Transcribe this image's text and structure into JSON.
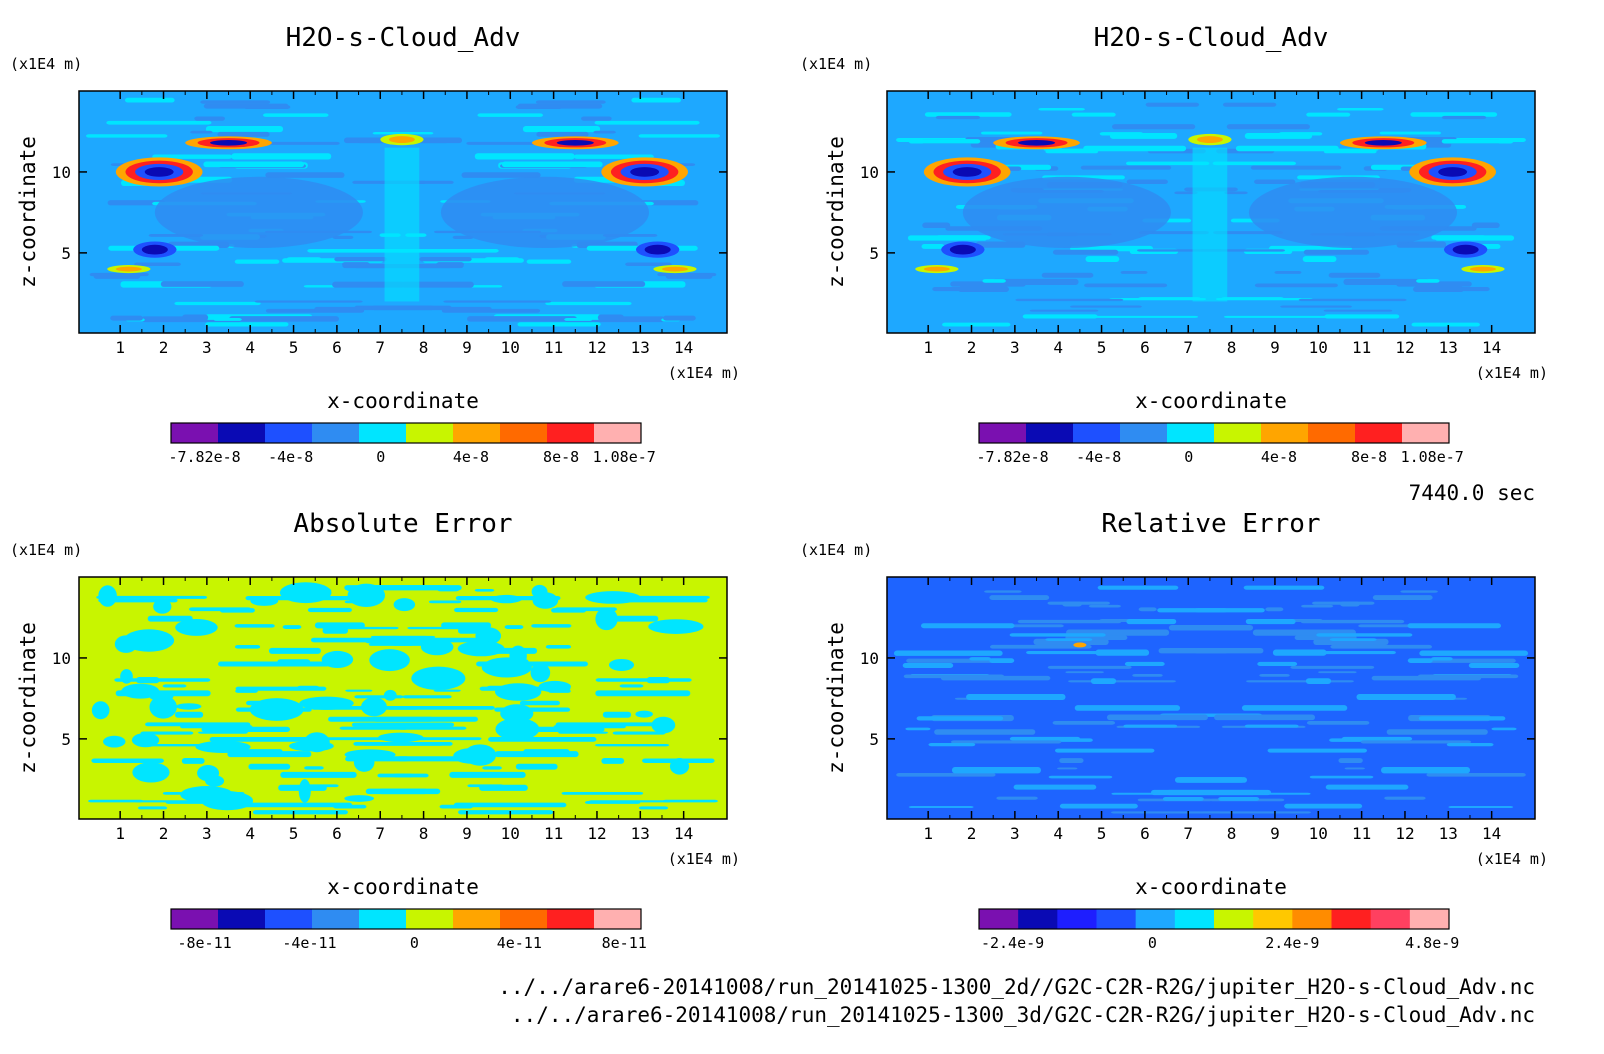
{
  "time_label": "7440.0 sec",
  "footer": {
    "line1": "../../arare6-20141008/run_20141025-1300_2d//G2C-C2R-R2G/jupiter_H2O-s-Cloud_Adv.nc",
    "line2": "../../arare6-20141008/run_20141025-1300_3d/G2C-C2R-R2G/jupiter_H2O-s-Cloud_Adv.nc"
  },
  "colors": {
    "deep_blue": "#0a33d6",
    "blue": "#1e64ff",
    "mid_blue": "#2f8cf2",
    "light_blue": "#1ea8ff",
    "cyan": "#00e5ff",
    "yellow_green": "#c8f500",
    "orange": "#ffa500",
    "red": "#ff2020"
  },
  "chart_data": [
    {
      "type": "heatmap",
      "title": "H2O-s-Cloud_Adv",
      "xlabel": "x-coordinate",
      "ylabel": "z-coordinate",
      "x_unit": "(x1E4 m)",
      "y_unit": "(x1E4 m)",
      "xlim": [
        0.05,
        15.0
      ],
      "ylim": [
        0.05,
        15.0
      ],
      "x_ticks": [
        "1",
        "2",
        "3",
        "4",
        "5",
        "6",
        "7",
        "8",
        "9",
        "10",
        "11",
        "12",
        "13",
        "14"
      ],
      "y_ticks": [
        "5",
        "10"
      ],
      "colorbar": {
        "colors": [
          "#7a10b0",
          "#0a0ab4",
          "#1e50ff",
          "#2f8cf2",
          "#00e5ff",
          "#c8f500",
          "#ffa500",
          "#ff6a00",
          "#ff2020",
          "#ffb0b0"
        ],
        "tick_labels": [
          "-7.82e-8",
          "-4e-8",
          "0",
          "4e-8",
          "8e-8",
          "1.08e-7"
        ],
        "tick_values": [
          -7.82e-08,
          -4e-08,
          0,
          4e-08,
          8e-08,
          1.08e-07
        ]
      },
      "field": {
        "background": "#1ea8ff",
        "features": [
          {
            "x": 1.9,
            "z": 10.0,
            "rx": 1.0,
            "rz": 0.9,
            "colors": [
              "#ffa500",
              "#ff2020",
              "#1e50ff",
              "#0a0ab4"
            ]
          },
          {
            "x": 13.1,
            "z": 10.0,
            "rx": 1.0,
            "rz": 0.9,
            "colors": [
              "#ffa500",
              "#ff2020",
              "#1e50ff",
              "#0a0ab4"
            ]
          },
          {
            "x": 3.5,
            "z": 11.8,
            "rx": 1.0,
            "rz": 0.4,
            "colors": [
              "#ffa500",
              "#ff2020",
              "#0a0ab4"
            ]
          },
          {
            "x": 11.5,
            "z": 11.8,
            "rx": 1.0,
            "rz": 0.4,
            "colors": [
              "#ffa500",
              "#ff2020",
              "#0a0ab4"
            ]
          },
          {
            "x": 7.5,
            "z": 12.0,
            "rx": 0.5,
            "rz": 0.35,
            "colors": [
              "#c8f500",
              "#ffa500"
            ]
          },
          {
            "x": 1.8,
            "z": 5.2,
            "rx": 0.5,
            "rz": 0.5,
            "colors": [
              "#1e50ff",
              "#0a0ab4"
            ]
          },
          {
            "x": 13.4,
            "z": 5.2,
            "rx": 0.5,
            "rz": 0.5,
            "colors": [
              "#1e50ff",
              "#0a0ab4"
            ]
          },
          {
            "x": 1.2,
            "z": 4.0,
            "rx": 0.5,
            "rz": 0.25,
            "colors": [
              "#c8f500",
              "#ffa500"
            ]
          },
          {
            "x": 13.8,
            "z": 4.0,
            "rx": 0.5,
            "rz": 0.25,
            "colors": [
              "#c8f500",
              "#ffa500"
            ]
          }
        ],
        "band_colors": [
          "#00e5ff",
          "#2f8cf2"
        ]
      }
    },
    {
      "type": "heatmap",
      "title": "H2O-s-Cloud_Adv",
      "xlabel": "x-coordinate",
      "ylabel": "z-coordinate",
      "x_unit": "(x1E4 m)",
      "y_unit": "(x1E4 m)",
      "xlim": [
        0.05,
        15.0
      ],
      "ylim": [
        0.05,
        15.0
      ],
      "x_ticks": [
        "1",
        "2",
        "3",
        "4",
        "5",
        "6",
        "7",
        "8",
        "9",
        "10",
        "11",
        "12",
        "13",
        "14"
      ],
      "y_ticks": [
        "5",
        "10"
      ],
      "colorbar": {
        "colors": [
          "#7a10b0",
          "#0a0ab4",
          "#1e50ff",
          "#2f8cf2",
          "#00e5ff",
          "#c8f500",
          "#ffa500",
          "#ff6a00",
          "#ff2020",
          "#ffb0b0"
        ],
        "tick_labels": [
          "-7.82e-8",
          "-4e-8",
          "0",
          "4e-8",
          "8e-8",
          "1.08e-7"
        ],
        "tick_values": [
          -7.82e-08,
          -4e-08,
          0,
          4e-08,
          8e-08,
          1.08e-07
        ]
      },
      "field": {
        "background": "#1ea8ff",
        "features": [
          {
            "x": 1.9,
            "z": 10.0,
            "rx": 1.0,
            "rz": 0.9,
            "colors": [
              "#ffa500",
              "#ff2020",
              "#1e50ff",
              "#0a0ab4"
            ]
          },
          {
            "x": 13.1,
            "z": 10.0,
            "rx": 1.0,
            "rz": 0.9,
            "colors": [
              "#ffa500",
              "#ff2020",
              "#1e50ff",
              "#0a0ab4"
            ]
          },
          {
            "x": 3.5,
            "z": 11.8,
            "rx": 1.0,
            "rz": 0.4,
            "colors": [
              "#ffa500",
              "#ff2020",
              "#0a0ab4"
            ]
          },
          {
            "x": 11.5,
            "z": 11.8,
            "rx": 1.0,
            "rz": 0.4,
            "colors": [
              "#ffa500",
              "#ff2020",
              "#0a0ab4"
            ]
          },
          {
            "x": 7.5,
            "z": 12.0,
            "rx": 0.5,
            "rz": 0.35,
            "colors": [
              "#c8f500",
              "#ffa500"
            ]
          },
          {
            "x": 1.8,
            "z": 5.2,
            "rx": 0.5,
            "rz": 0.5,
            "colors": [
              "#1e50ff",
              "#0a0ab4"
            ]
          },
          {
            "x": 13.4,
            "z": 5.2,
            "rx": 0.5,
            "rz": 0.5,
            "colors": [
              "#1e50ff",
              "#0a0ab4"
            ]
          },
          {
            "x": 1.2,
            "z": 4.0,
            "rx": 0.5,
            "rz": 0.25,
            "colors": [
              "#c8f500",
              "#ffa500"
            ]
          },
          {
            "x": 13.8,
            "z": 4.0,
            "rx": 0.5,
            "rz": 0.25,
            "colors": [
              "#c8f500",
              "#ffa500"
            ]
          }
        ],
        "band_colors": [
          "#00e5ff",
          "#2f8cf2"
        ]
      }
    },
    {
      "type": "heatmap",
      "title": "Absolute Error",
      "xlabel": "x-coordinate",
      "ylabel": "z-coordinate",
      "x_unit": "(x1E4 m)",
      "y_unit": "(x1E4 m)",
      "xlim": [
        0.05,
        15.0
      ],
      "ylim": [
        0.05,
        15.0
      ],
      "x_ticks": [
        "1",
        "2",
        "3",
        "4",
        "5",
        "6",
        "7",
        "8",
        "9",
        "10",
        "11",
        "12",
        "13",
        "14"
      ],
      "y_ticks": [
        "5",
        "10"
      ],
      "colorbar": {
        "colors": [
          "#7a10b0",
          "#0a0ab4",
          "#1e50ff",
          "#2f8cf2",
          "#00e5ff",
          "#c8f500",
          "#ffa500",
          "#ff6a00",
          "#ff2020",
          "#ffb0b0"
        ],
        "tick_labels": [
          "-8e-11",
          "-4e-11",
          "0",
          "4e-11",
          "8e-11"
        ],
        "tick_values": [
          -8e-11,
          -4e-11,
          0,
          4e-11,
          8e-11
        ]
      },
      "field": {
        "background": "#c8f500",
        "features": [],
        "band_colors": [
          "#00e5ff",
          "#00e5ff"
        ]
      }
    },
    {
      "type": "heatmap",
      "title": "Relative Error",
      "xlabel": "x-coordinate",
      "ylabel": "z-coordinate",
      "x_unit": "(x1E4 m)",
      "y_unit": "(x1E4 m)",
      "xlim": [
        0.05,
        15.0
      ],
      "ylim": [
        0.05,
        15.0
      ],
      "x_ticks": [
        "1",
        "2",
        "3",
        "4",
        "5",
        "6",
        "7",
        "8",
        "9",
        "10",
        "11",
        "12",
        "13",
        "14"
      ],
      "y_ticks": [
        "5",
        "10"
      ],
      "colorbar": {
        "colors": [
          "#7a10b0",
          "#0a0ab4",
          "#1e1eff",
          "#1e50ff",
          "#1ea8ff",
          "#00e5ff",
          "#c8f500",
          "#ffc800",
          "#ff8c00",
          "#ff2020",
          "#ff4060",
          "#ffb0b0"
        ],
        "tick_labels": [
          "-2.4e-9",
          "0",
          "2.4e-9",
          "4.8e-9"
        ],
        "tick_values": [
          -2.4e-09,
          0,
          2.4e-09,
          4.8e-09
        ]
      },
      "field": {
        "background": "#1e64ff",
        "features": [
          {
            "x": 4.5,
            "z": 10.8,
            "rx": 0.15,
            "rz": 0.15,
            "colors": [
              "#ffa500"
            ]
          }
        ],
        "band_colors": [
          "#1ea8ff",
          "#2f8cf2"
        ]
      }
    }
  ]
}
